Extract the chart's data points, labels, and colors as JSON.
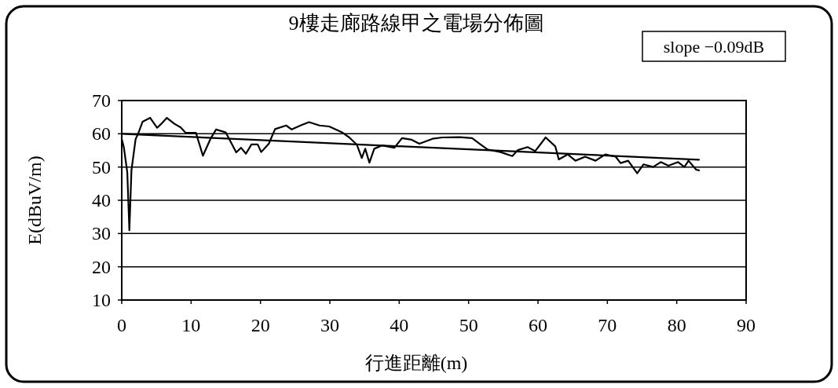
{
  "chart_data": {
    "type": "line",
    "title": "9樓走廊路線甲之電場分佈圖",
    "xlabel": "行進距離(m)",
    "ylabel": "E(dBuV/m)",
    "annotations": [
      "slope −0.09dB"
    ],
    "grid": "y",
    "xlim": [
      0,
      90
    ],
    "xticks": [
      0,
      10,
      20,
      30,
      40,
      50,
      60,
      70,
      80,
      90
    ],
    "ylim": [
      10,
      70
    ],
    "yticks": [
      10,
      20,
      30,
      40,
      50,
      60,
      70
    ],
    "series": [
      {
        "color": "#000000",
        "x": [
          0,
          0.3,
          0.8,
          1.1,
          1.4,
          2.0,
          2.4,
          3.0,
          4.1,
          5.1,
          5.7,
          6.5,
          7.6,
          8.5,
          9.2,
          10.7,
          11.7,
          12.8,
          13.6,
          15.0,
          16.5,
          17.2,
          17.9,
          18.7,
          19.6,
          20.1,
          21.2,
          22.1,
          23.7,
          24.5,
          25.9,
          27.0,
          28.5,
          29.9,
          31.7,
          32.8,
          33.9,
          34.6,
          35.1,
          35.7,
          36.4,
          37.5,
          39.3,
          40.4,
          41.8,
          42.9,
          44.8,
          46.2,
          48.7,
          50.5,
          51.6,
          52.7,
          54.6,
          56.3,
          57.1,
          58.5,
          59.6,
          61.1,
          62.5,
          63.0,
          64.3,
          65.4,
          66.8,
          68.3,
          69.7,
          71.2,
          71.9,
          73.0,
          74.3,
          75.2,
          76.6,
          77.7,
          78.8,
          80.2,
          81.1,
          81.7,
          82.8,
          83.2
        ],
        "values": [
          58.4,
          56,
          48.4,
          31,
          49,
          58.4,
          60.2,
          63.6,
          64.8,
          61.8,
          63,
          64.8,
          63,
          61.9,
          60.3,
          60.3,
          53.4,
          58.5,
          61.3,
          60.4,
          54.4,
          55.8,
          54,
          56.8,
          56.8,
          54.5,
          57,
          61.4,
          62.5,
          61.3,
          62.6,
          63.5,
          62.5,
          62.2,
          60.5,
          58.9,
          56.7,
          52.7,
          55.5,
          51.3,
          55.5,
          56.5,
          55.8,
          58.7,
          58.2,
          57,
          58.5,
          58.9,
          59,
          58.7,
          57,
          55.3,
          54.5,
          53.3,
          55.1,
          56,
          54.8,
          58.9,
          56.2,
          52.3,
          53.8,
          51.9,
          53.1,
          51.9,
          53.8,
          53.1,
          51.2,
          51.9,
          48.1,
          50.8,
          50,
          51.5,
          50.4,
          51.5,
          50,
          51.9,
          49.2,
          49
        ]
      },
      {
        "type": "line",
        "color": "#000000",
        "x": [
          0,
          83.2
        ],
        "values": [
          60,
          52.2
        ]
      }
    ]
  }
}
